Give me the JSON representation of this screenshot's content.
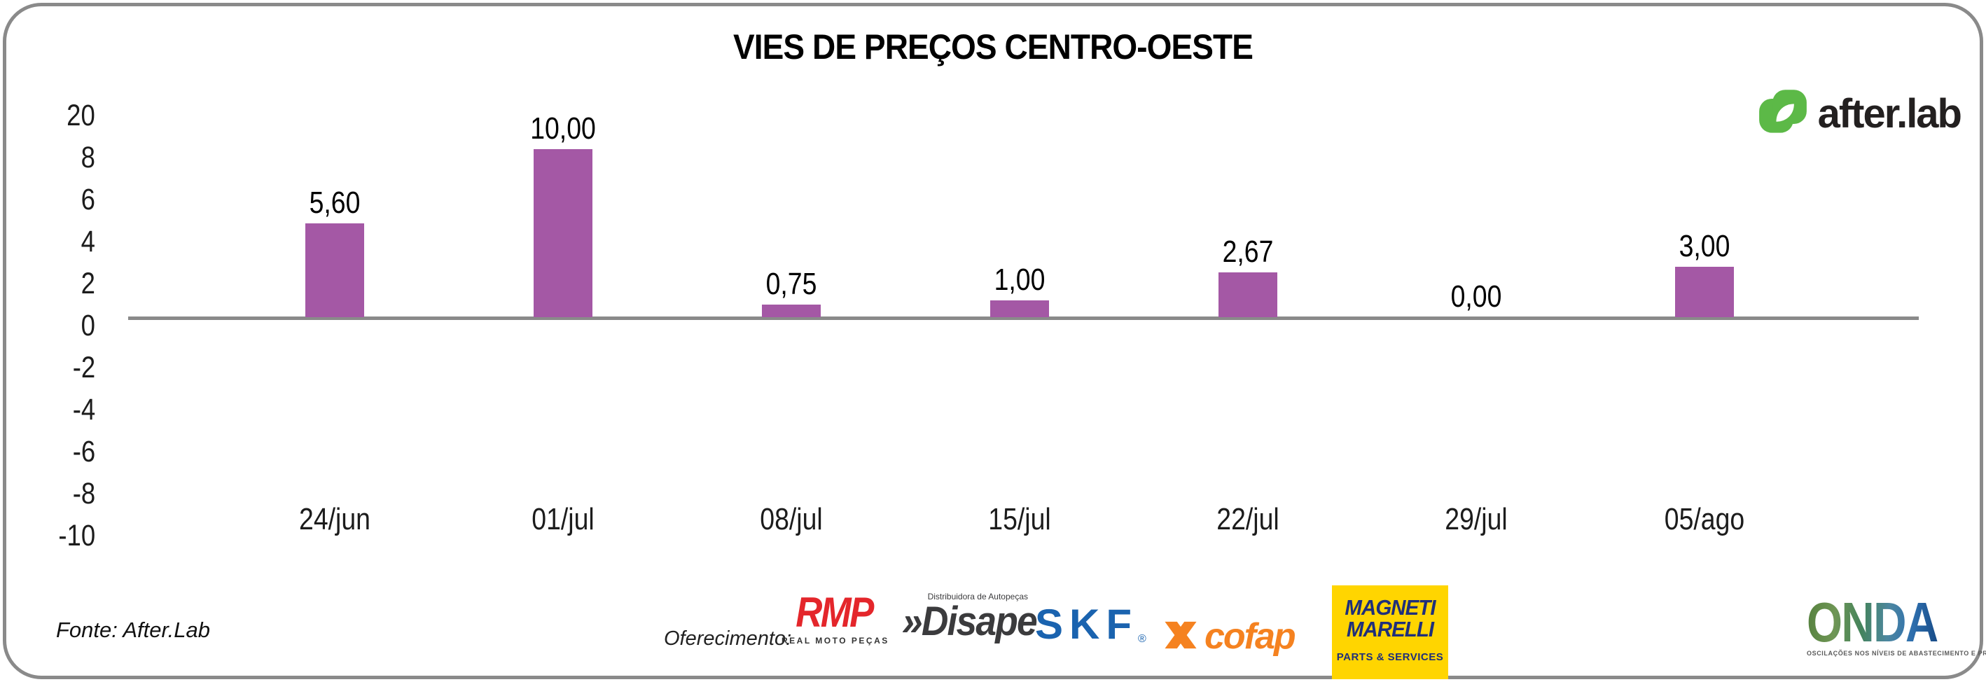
{
  "chart_data": {
    "type": "bar",
    "title": "VIES DE PREÇOS CENTRO-OESTE",
    "categories": [
      "24/jun",
      "01/jul",
      "08/jul",
      "15/jul",
      "22/jul",
      "29/jul",
      "05/ago"
    ],
    "values": [
      5.6,
      10.0,
      0.75,
      1.0,
      2.67,
      0.0,
      3.0
    ],
    "value_labels": [
      "5,60",
      "10,00",
      "0,75",
      "1,00",
      "2,67",
      "0,00",
      "3,00"
    ],
    "ytick_labels": [
      "20",
      "8",
      "6",
      "4",
      "2",
      "0",
      "-2",
      "-4",
      "-6",
      "-8",
      "-10"
    ],
    "ylim": [
      -10,
      20
    ],
    "xlabel": "",
    "ylabel": "",
    "grid": false,
    "legend": null,
    "bar_color": "#A458A5",
    "baseline_color": "#8A8A8A"
  },
  "branding": {
    "afterlab": {
      "wordmark": "after.lab",
      "green": "#5CB947",
      "text_color": "#232020"
    }
  },
  "footer": {
    "fonte": "Fonte: After.Lab",
    "oferecimento_label": "Oferecimento:"
  },
  "sponsors": {
    "rmp": {
      "name": "RMP",
      "subtitle": "REAL MOTO PEÇAS",
      "color": "#E4262B"
    },
    "disape": {
      "chevron": "»",
      "name": "Disape",
      "tagline": "Distribuidora de Autopeças",
      "color": "#3B3B3D"
    },
    "skf": {
      "name": "SKF",
      "reg": "®",
      "color": "#1A63AF"
    },
    "cofap": {
      "name": "cofap",
      "color": "#F58220"
    },
    "magneti": {
      "line1": "MAGNETI",
      "line2": "MARELLI",
      "line3": "PARTS & SERVICES",
      "bg": "#FFD500",
      "navy": "#1F2F7B"
    },
    "onda": {
      "name": "ONDA",
      "tagline": "OSCILAÇÕES NOS NÍVEIS DE ABASTECIMENTO E PREÇO"
    }
  }
}
